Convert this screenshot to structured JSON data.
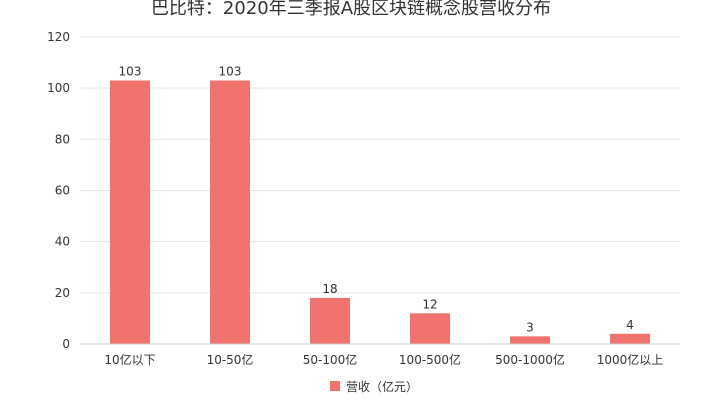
{
  "chart_data": {
    "type": "bar",
    "title": "巴比特：2020年三季报A股区块链概念股营收分布",
    "xlabel": "",
    "ylabel": "",
    "categories": [
      "10亿以下",
      "10-50亿",
      "50-100亿",
      "100-500亿",
      "500-1000亿",
      "1000亿以上"
    ],
    "series": [
      {
        "name": "营收（亿元）",
        "values": [
          103,
          103,
          18,
          12,
          3,
          4
        ]
      }
    ],
    "ylim": [
      0,
      120
    ],
    "yticks": [
      0,
      20,
      40,
      60,
      80,
      100,
      120
    ],
    "grid": true,
    "legend_position": "bottom",
    "bar_color": "#f0736e"
  }
}
